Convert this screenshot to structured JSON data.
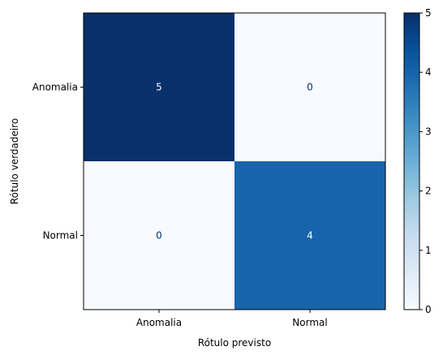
{
  "chart_data": {
    "type": "heatmap",
    "title": "",
    "xlabel": "Rótulo previsto",
    "ylabel": "Rótulo verdadeiro",
    "x_categories": [
      "Anomalia",
      "Normal"
    ],
    "y_categories": [
      "Anomalia",
      "Normal"
    ],
    "values": [
      [
        5,
        0
      ],
      [
        0,
        4
      ]
    ],
    "colorbar": {
      "min": 0,
      "max": 5,
      "ticks": [
        "0",
        "1",
        "2",
        "3",
        "4",
        "5"
      ],
      "colormap": "Blues"
    },
    "grid": false
  }
}
